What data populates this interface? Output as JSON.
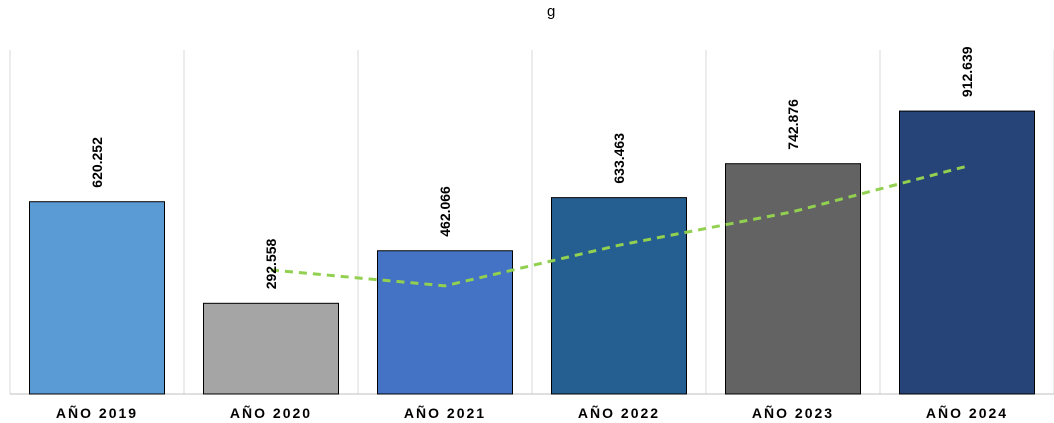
{
  "title_fragment": "g",
  "chart_data": {
    "type": "bar",
    "title": "",
    "xlabel": "",
    "ylabel": "",
    "categories": [
      "AÑO 2019",
      "AÑO 2020",
      "AÑO 2021",
      "AÑO 2022",
      "AÑO 2023",
      "AÑO 2024"
    ],
    "values": [
      620252,
      292558,
      462066,
      633463,
      742876,
      912639
    ],
    "value_labels": [
      "620.252",
      "292.558",
      "462.066",
      "633.463",
      "742.876",
      "912.639"
    ],
    "bar_colors": [
      "#5b9bd5",
      "#a5a5a5",
      "#4472c4",
      "#255e91",
      "#636363",
      "#264478"
    ],
    "ylim": [
      0,
      1000000
    ],
    "grid": "vertical separators",
    "trendline": {
      "style": "dashed",
      "color": "#92d050",
      "values": [
        400000,
        349000,
        480000,
        588000,
        735000
      ]
    }
  }
}
